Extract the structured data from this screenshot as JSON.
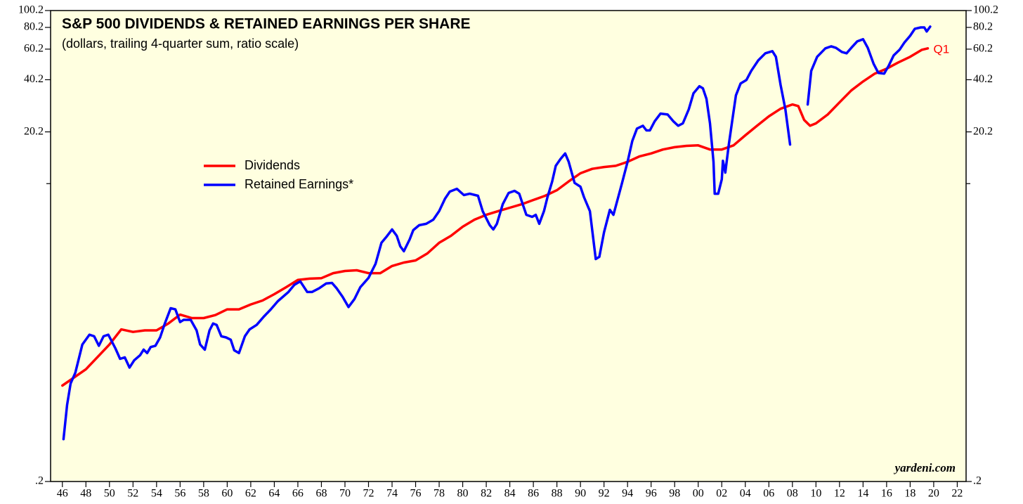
{
  "chart_data": {
    "type": "line",
    "title": "S&P 500 DIVIDENDS & RETAINED EARNINGS PER SHARE",
    "subtitle": "(dollars, trailing 4-quarter sum, ratio scale)",
    "source": "yardeni.com",
    "annotation": "Q1",
    "yscale": "log",
    "grid": false,
    "legend": "center-left",
    "background": "#ffffe0",
    "xlim": [
      1945,
      2022.75
    ],
    "ylim": [
      0.2,
      100.2
    ],
    "yticks": [
      {
        "value": 0.2,
        "label": ".2"
      },
      20.2,
      40.2,
      60.2,
      80.2,
      100.2
    ],
    "yticks_minor": [
      10.2
    ],
    "xticks": [
      {
        "value": 1946,
        "label": "46"
      },
      {
        "value": 1948,
        "label": "48"
      },
      {
        "value": 1950,
        "label": "50"
      },
      {
        "value": 1952,
        "label": "52"
      },
      {
        "value": 1954,
        "label": "54"
      },
      {
        "value": 1956,
        "label": "56"
      },
      {
        "value": 1958,
        "label": "58"
      },
      {
        "value": 1960,
        "label": "60"
      },
      {
        "value": 1962,
        "label": "62"
      },
      {
        "value": 1964,
        "label": "64"
      },
      {
        "value": 1966,
        "label": "66"
      },
      {
        "value": 1968,
        "label": "68"
      },
      {
        "value": 1970,
        "label": "70"
      },
      {
        "value": 1972,
        "label": "72"
      },
      {
        "value": 1974,
        "label": "74"
      },
      {
        "value": 1976,
        "label": "76"
      },
      {
        "value": 1978,
        "label": "78"
      },
      {
        "value": 1980,
        "label": "80"
      },
      {
        "value": 1982,
        "label": "82"
      },
      {
        "value": 1984,
        "label": "84"
      },
      {
        "value": 1986,
        "label": "86"
      },
      {
        "value": 1988,
        "label": "88"
      },
      {
        "value": 1990,
        "label": "90"
      },
      {
        "value": 1992,
        "label": "92"
      },
      {
        "value": 1994,
        "label": "94"
      },
      {
        "value": 1996,
        "label": "96"
      },
      {
        "value": 1998,
        "label": "98"
      },
      {
        "value": 2000,
        "label": "00"
      },
      {
        "value": 2002,
        "label": "02"
      },
      {
        "value": 2004,
        "label": "04"
      },
      {
        "value": 2006,
        "label": "06"
      },
      {
        "value": 2008,
        "label": "08"
      },
      {
        "value": 2010,
        "label": "10"
      },
      {
        "value": 2012,
        "label": "12"
      },
      {
        "value": 2014,
        "label": "14"
      },
      {
        "value": 2016,
        "label": "16"
      },
      {
        "value": 2018,
        "label": "18"
      },
      {
        "value": 2020,
        "label": "20"
      },
      {
        "value": 2022,
        "label": "22"
      }
    ],
    "series": [
      {
        "name": "Dividends",
        "color": "#ff0000",
        "x": [
          1946,
          1948,
          1950,
          1951,
          1952,
          1953,
          1954,
          1955,
          1956,
          1957,
          1958,
          1959,
          1960,
          1961,
          1962,
          1963,
          1964,
          1965,
          1966,
          1967,
          1968,
          1969,
          1970,
          1971,
          1972,
          1973,
          1974,
          1975,
          1976,
          1977,
          1978,
          1979,
          1980,
          1981,
          1982,
          1983,
          1984,
          1985,
          1986,
          1987,
          1988,
          1989,
          1990,
          1991,
          1992,
          1993,
          1994,
          1995,
          1996,
          1997,
          1998,
          1999,
          2000,
          2001,
          2002,
          2003,
          2004,
          2005,
          2006,
          2007,
          2008,
          2008.5,
          2009,
          2009.5,
          2010,
          2011,
          2012,
          2013,
          2014,
          2015,
          2016,
          2017,
          2018,
          2019,
          2019.5
        ],
        "values": [
          0.71,
          0.88,
          1.22,
          1.49,
          1.44,
          1.47,
          1.47,
          1.61,
          1.81,
          1.73,
          1.73,
          1.8,
          1.94,
          1.94,
          2.07,
          2.18,
          2.37,
          2.6,
          2.86,
          2.91,
          2.93,
          3.13,
          3.22,
          3.25,
          3.13,
          3.13,
          3.44,
          3.6,
          3.7,
          4.06,
          4.67,
          5.12,
          5.78,
          6.34,
          6.76,
          7.09,
          7.42,
          7.77,
          8.22,
          8.69,
          9.35,
          10.5,
          11.7,
          12.4,
          12.7,
          12.9,
          13.6,
          14.6,
          15.2,
          16.0,
          16.5,
          16.8,
          16.9,
          16.0,
          16.0,
          16.9,
          19.3,
          21.9,
          24.8,
          27.4,
          29.0,
          28.4,
          23.6,
          21.9,
          22.6,
          25.4,
          29.8,
          34.9,
          39.3,
          43.6,
          46.5,
          50.5,
          54.4,
          59.7,
          60.8
        ]
      },
      {
        "name": "Retained Earnings*",
        "color": "#0000ff",
        "x": [
          1946.1,
          1946.4,
          1946.7,
          1947.1,
          1947.7,
          1948.3,
          1948.7,
          1949.1,
          1949.5,
          1949.9,
          1950.5,
          1950.9,
          1951.3,
          1951.7,
          1952.1,
          1952.6,
          1952.9,
          1953.2,
          1953.5,
          1953.9,
          1954.3,
          1954.7,
          1955.2,
          1955.6,
          1956.0,
          1956.3,
          1956.9,
          1957.4,
          1957.7,
          1958.1,
          1958.5,
          1958.8,
          1959.1,
          1959.5,
          1959.9,
          1960.3,
          1960.6,
          1961.0,
          1961.5,
          1961.9,
          1962.5,
          1963.1,
          1963.7,
          1964.3,
          1965.2,
          1965.7,
          1966.2,
          1966.8,
          1967.2,
          1967.8,
          1968.4,
          1968.9,
          1969.3,
          1969.8,
          1970.3,
          1970.8,
          1971.3,
          1972.0,
          1972.6,
          1973.1,
          1973.5,
          1974.0,
          1974.4,
          1974.7,
          1975.0,
          1975.5,
          1975.8,
          1976.3,
          1976.9,
          1977.5,
          1978.0,
          1978.5,
          1978.9,
          1979.5,
          1980.1,
          1980.6,
          1981.3,
          1981.7,
          1982.3,
          1982.6,
          1982.9,
          1983.4,
          1983.9,
          1984.4,
          1984.8,
          1985.1,
          1985.4,
          1985.9,
          1986.2,
          1986.5,
          1986.9,
          1987.2,
          1987.6,
          1987.9,
          1988.3,
          1988.7,
          1989.0,
          1989.5,
          1990.0,
          1990.3,
          1990.8,
          1991.3,
          1991.6,
          1992.0,
          1992.5,
          1992.8,
          1993.5,
          1994.0,
          1994.4,
          1994.8,
          1995.3,
          1995.6,
          1995.9,
          1996.3,
          1996.8,
          1997.4,
          1997.9,
          1998.3,
          1998.7,
          1999.2,
          1999.6,
          2000.1,
          2000.4,
          2000.7,
          2001.0,
          2001.3,
          2001.4,
          2001.7,
          2002.0,
          2002.1,
          2002.3,
          2002.6,
          2002.9,
          2003.2,
          2003.6,
          2004.1,
          2004.5,
          2005.1,
          2005.7,
          2006.3,
          2006.6,
          2007.0,
          2007.4,
          2007.8,
          2008.5,
          2009.3,
          2009.6,
          2010.1,
          2010.8,
          2011.3,
          2011.7,
          2012.2,
          2012.6,
          2013.0,
          2013.5,
          2014.0,
          2014.4,
          2014.9,
          2015.3,
          2015.8,
          2016.2,
          2016.6,
          2017.1,
          2017.5,
          2018.0,
          2018.4,
          2018.9,
          2019.2,
          2019.4,
          2019.7
        ],
        "values": [
          0.35,
          0.55,
          0.73,
          0.84,
          1.22,
          1.39,
          1.36,
          1.2,
          1.36,
          1.39,
          1.16,
          1.01,
          1.03,
          0.9,
          0.99,
          1.06,
          1.14,
          1.09,
          1.18,
          1.2,
          1.34,
          1.61,
          1.97,
          1.94,
          1.64,
          1.69,
          1.69,
          1.47,
          1.22,
          1.14,
          1.47,
          1.61,
          1.58,
          1.36,
          1.34,
          1.3,
          1.13,
          1.09,
          1.36,
          1.49,
          1.58,
          1.76,
          1.94,
          2.16,
          2.44,
          2.68,
          2.81,
          2.44,
          2.44,
          2.56,
          2.73,
          2.75,
          2.56,
          2.29,
          2.0,
          2.22,
          2.6,
          2.94,
          3.54,
          4.67,
          5.03,
          5.57,
          5.12,
          4.46,
          4.18,
          4.89,
          5.52,
          5.89,
          6.0,
          6.34,
          7.09,
          8.37,
          9.18,
          9.53,
          8.77,
          8.93,
          8.69,
          7.09,
          5.89,
          5.57,
          6.0,
          7.77,
          9.02,
          9.27,
          8.93,
          7.77,
          6.76,
          6.58,
          6.76,
          6.0,
          7.09,
          8.53,
          10.5,
          12.9,
          14.1,
          15.2,
          13.6,
          10.3,
          9.8,
          8.53,
          7.09,
          3.77,
          3.88,
          5.37,
          7.22,
          6.76,
          10.1,
          13.6,
          17.9,
          21.1,
          21.9,
          20.6,
          20.6,
          23.2,
          25.7,
          25.4,
          23.2,
          21.9,
          22.6,
          27.2,
          33.6,
          36.9,
          35.9,
          31.2,
          22.6,
          13.6,
          8.93,
          8.93,
          10.8,
          13.8,
          11.8,
          17.1,
          23.6,
          32.7,
          38.3,
          40.1,
          45.2,
          51.9,
          57.0,
          58.6,
          54.4,
          37.5,
          27.2,
          17.1,
          null,
          29.0,
          45.2,
          54.4,
          60.8,
          62.5,
          61.2,
          58.0,
          57.0,
          61.2,
          66.7,
          68.6,
          61.2,
          49.6,
          44.0,
          43.6,
          48.7,
          55.4,
          59.7,
          65.5,
          71.8,
          78.8,
          80.2,
          80.2,
          76.0,
          81.0
        ]
      }
    ]
  }
}
